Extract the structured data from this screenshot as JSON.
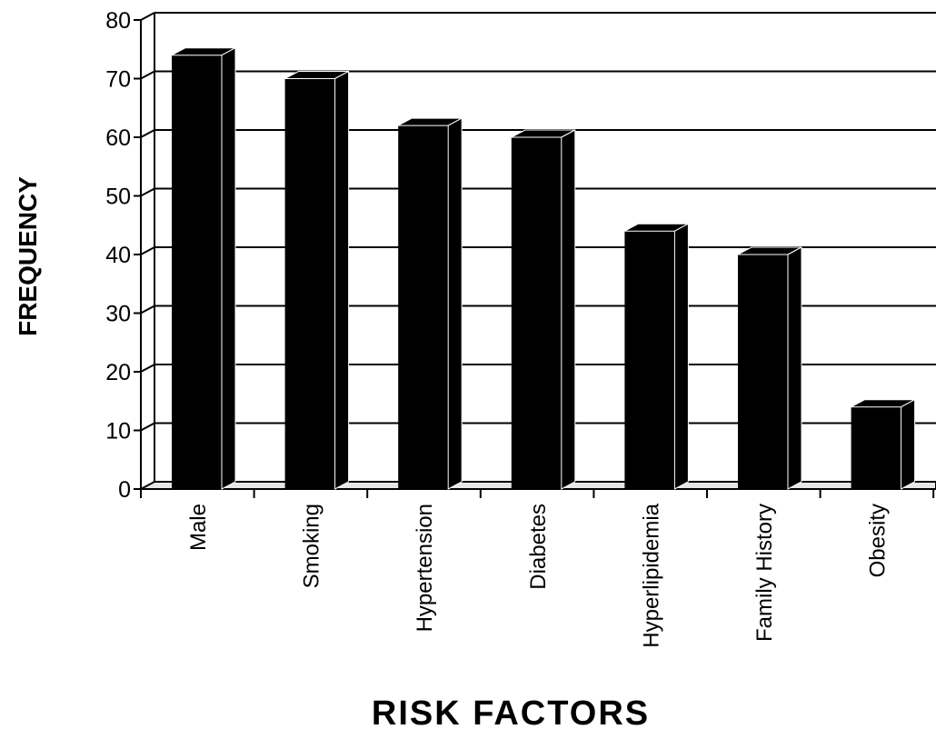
{
  "chart_data": {
    "type": "bar",
    "title": "",
    "xlabel": "RISK FACTORS",
    "ylabel": "FREQUENCY",
    "categories": [
      "Male",
      "Smoking",
      "Hypertension",
      "Diabetes",
      "Hyperlipidemia",
      "Family History",
      "Obesity"
    ],
    "values": [
      74,
      70,
      62,
      60,
      44,
      40,
      14
    ],
    "yticks": [
      "0",
      "10",
      "20",
      "30",
      "40",
      "50",
      "60",
      "70",
      "80"
    ],
    "ylim": [
      0,
      80
    ],
    "grid": true,
    "legend": "none",
    "bar_color": "#000000",
    "floor_color": "#e6e6e6"
  }
}
